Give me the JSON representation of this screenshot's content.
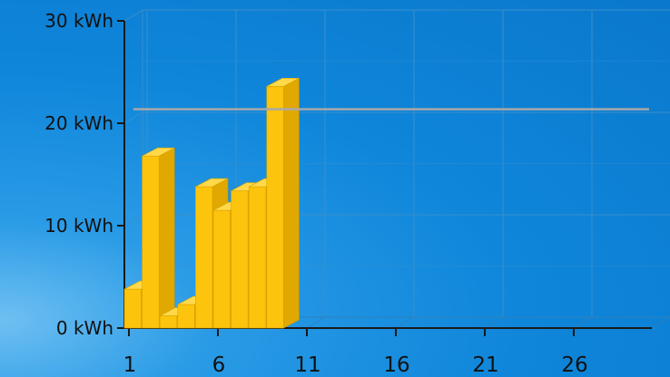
{
  "chart_data": {
    "type": "bar",
    "x_ticks": [
      1,
      6,
      11,
      16,
      21,
      26
    ],
    "x_range": [
      1,
      30
    ],
    "y_ticks": [
      "0 kWh",
      "10 kWh",
      "20 kWh",
      "30 kWh"
    ],
    "y_unit": "kWh",
    "ylim": [
      0,
      30
    ],
    "grid": true,
    "series": [
      {
        "values": [
          3.8,
          16.8,
          1.2,
          2.3,
          13.8,
          11.5,
          13.4,
          13.8,
          23.6
        ]
      }
    ],
    "reference_line": {
      "value": 21.2,
      "color": "#a8a8a8"
    },
    "colors": {
      "bar_front": "#fcc40c",
      "bar_side": "#e0a800",
      "bar_top": "#ffd94a",
      "axis": "#1a1a1a",
      "grid": "#3a8fcc"
    }
  }
}
